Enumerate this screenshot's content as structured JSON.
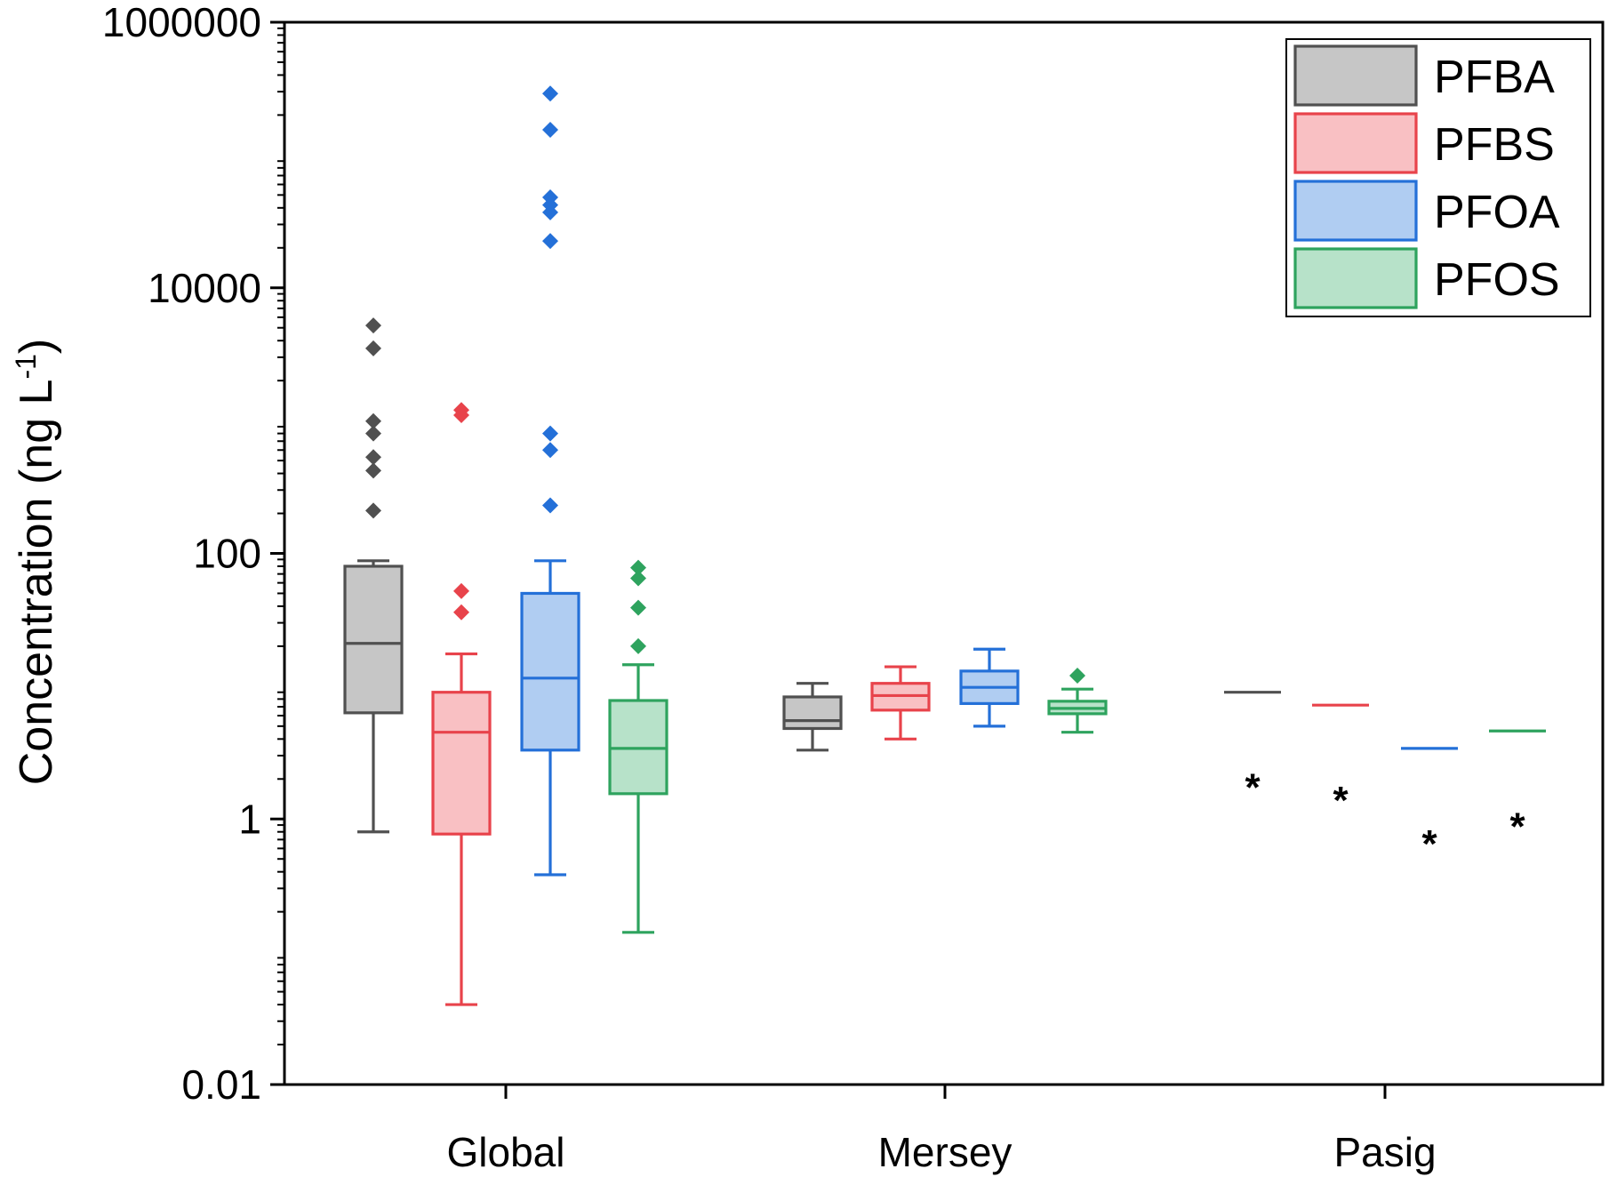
{
  "chart_data": {
    "type": "box",
    "ylabel": "Concentration (ng L",
    "ylabel_sup": "-1",
    "ylabel_close": ")",
    "yscale": "log",
    "ylim": [
      0.01,
      1000000
    ],
    "yticks": [
      {
        "value": 0.01,
        "label": "0.01"
      },
      {
        "value": 1,
        "label": "1"
      },
      {
        "value": 100,
        "label": "100"
      },
      {
        "value": 10000,
        "label": "10000"
      },
      {
        "value": 1000000,
        "label": "1000000"
      }
    ],
    "categories": [
      "Global",
      "Mersey",
      "Pasig"
    ],
    "legend": {
      "position": "top-right",
      "entries": [
        "PFBA",
        "PFBS",
        "PFOA",
        "PFOS"
      ]
    },
    "series": [
      {
        "name": "PFBA",
        "color": "#505050",
        "fill": "#c6c6c6",
        "boxes": [
          {
            "category": "Global",
            "min": 0.8,
            "q1": 6.3,
            "median": 21,
            "q3": 80,
            "max": 88,
            "outliers": [
              5200,
              3500,
              990,
              800,
              530,
              420,
              210
            ]
          },
          {
            "category": "Mersey",
            "min": 3.3,
            "q1": 4.8,
            "median": 5.5,
            "q3": 8.3,
            "max": 10.5,
            "outliers": []
          },
          {
            "category": "Pasig",
            "min": 9,
            "q1": 9,
            "median": 9,
            "q3": 9,
            "max": 9,
            "outliers": [],
            "marker": "*"
          }
        ]
      },
      {
        "name": "PFBS",
        "color": "#e8434b",
        "fill": "#f9c0c3",
        "boxes": [
          {
            "category": "Global",
            "min": 0.04,
            "q1": 0.77,
            "median": 4.5,
            "q3": 9,
            "max": 17.5,
            "outliers": [
              1200,
              1100,
              52,
              36
            ]
          },
          {
            "category": "Mersey",
            "min": 4,
            "q1": 6.6,
            "median": 8.5,
            "q3": 10.5,
            "max": 14,
            "outliers": []
          },
          {
            "category": "Pasig",
            "min": 7.2,
            "q1": 7.2,
            "median": 7.2,
            "q3": 7.2,
            "max": 7.2,
            "outliers": [],
            "marker": "*"
          }
        ]
      },
      {
        "name": "PFOA",
        "color": "#2470d8",
        "fill": "#b0cdf2",
        "boxes": [
          {
            "category": "Global",
            "min": 0.38,
            "q1": 3.3,
            "median": 11.5,
            "q3": 50,
            "max": 88,
            "outliers": [
              290000,
              155000,
              48000,
              42000,
              37000,
              22500,
              800,
              600,
              230
            ]
          },
          {
            "category": "Mersey",
            "min": 5,
            "q1": 7.4,
            "median": 9.8,
            "q3": 13,
            "max": 19,
            "outliers": []
          },
          {
            "category": "Pasig",
            "min": 3.4,
            "q1": 3.4,
            "median": 3.4,
            "q3": 3.4,
            "max": 3.4,
            "outliers": [],
            "marker": "*"
          }
        ]
      },
      {
        "name": "PFOS",
        "color": "#2ea35e",
        "fill": "#b7e2c9",
        "boxes": [
          {
            "category": "Global",
            "min": 0.14,
            "q1": 1.55,
            "median": 3.4,
            "q3": 7.8,
            "max": 14.5,
            "outliers": [
              78,
              65,
              39,
              20
            ]
          },
          {
            "category": "Mersey",
            "min": 4.5,
            "q1": 6.2,
            "median": 6.8,
            "q3": 7.7,
            "max": 9.5,
            "outliers": [
              12
            ]
          },
          {
            "category": "Pasig",
            "min": 4.6,
            "q1": 4.6,
            "median": 4.6,
            "q3": 4.6,
            "max": 4.6,
            "outliers": [],
            "marker": "*"
          }
        ]
      }
    ]
  }
}
